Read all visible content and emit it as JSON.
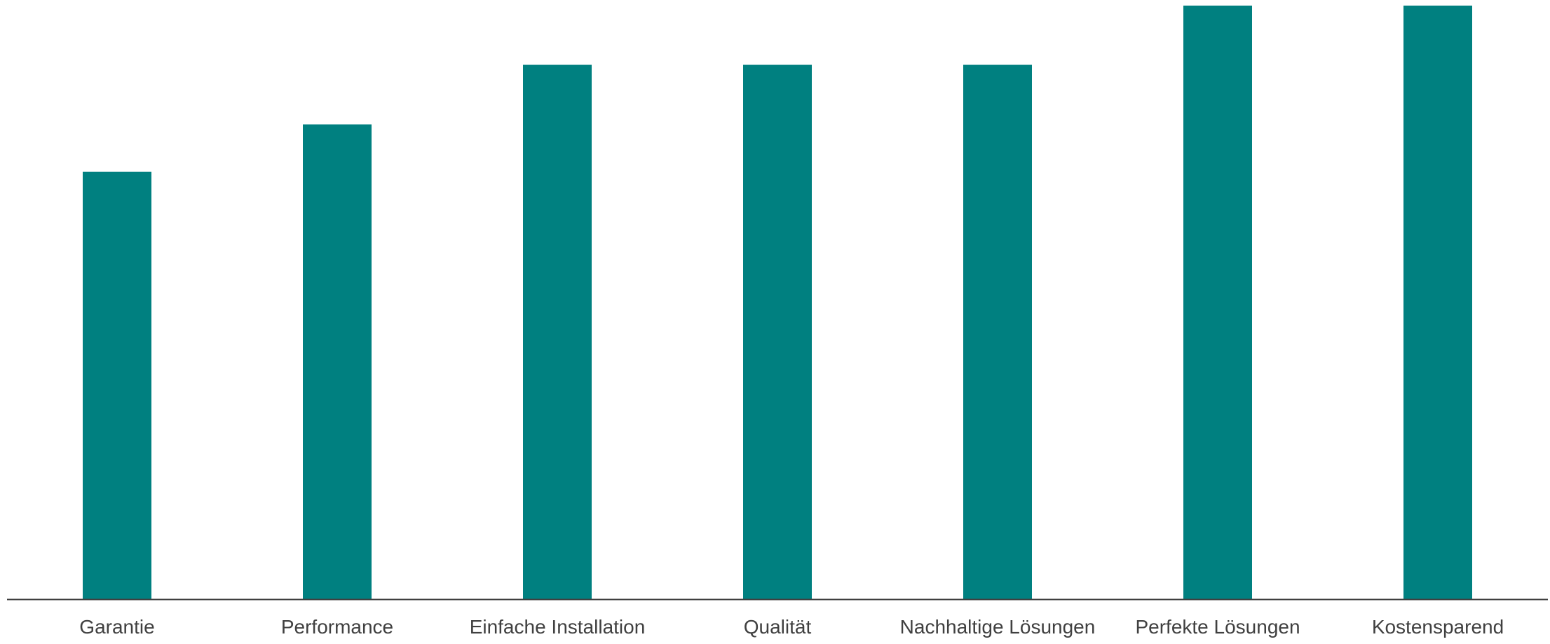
{
  "chart_data": {
    "type": "bar",
    "categories": [
      "Garantie",
      "Performance",
      "Einfache Installation",
      "Qualität",
      "Nachhaltige Lösungen",
      "Perfekte Lösungen",
      "Kostensparend"
    ],
    "values": [
      7.2,
      8.0,
      9.0,
      9.0,
      9.0,
      10.0,
      10.0
    ],
    "title": "",
    "xlabel": "",
    "ylabel": "",
    "ylim": [
      0,
      10
    ],
    "grid": false,
    "legend": "none"
  },
  "colors": {
    "bar": "#008080",
    "axis": "#404040",
    "label": "#404040",
    "background": "#ffffff"
  }
}
